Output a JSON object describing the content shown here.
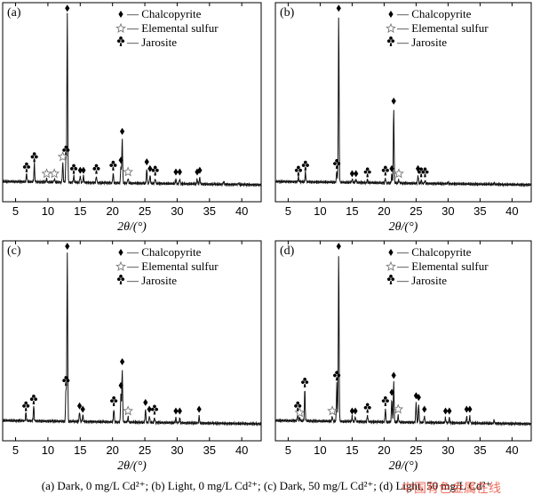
{
  "caption": "(a) Dark, 0 mg/L Cd²⁺; (b) Light, 0 mg/L Cd²⁺; (c) Dark, 50 mg/L Cd²⁺; (d) Light, 50 mg/L Cd²⁺",
  "watermark": "中国有色金属在线",
  "chart_data": [
    {
      "type": "line",
      "label": "(a)",
      "xlabel": "2θ/(°)",
      "xlim": [
        3,
        43
      ],
      "xticks": [
        5,
        10,
        15,
        20,
        25,
        30,
        35,
        40
      ],
      "legend": [
        "— Chalcopyrite",
        "— Elemental sulfur",
        "— Jarosite"
      ],
      "legend_placement": "top-right",
      "peaks": [
        {
          "x": 13.0,
          "h": 1.0,
          "marker": "chalcopyrite"
        },
        {
          "x": 21.5,
          "h": 0.27,
          "marker": "chalcopyrite"
        },
        {
          "x": 25.3,
          "h": 0.09,
          "marker": "chalcopyrite"
        },
        {
          "x": 12.8,
          "h": 0.15,
          "marker": "jarosite"
        },
        {
          "x": 12.3,
          "h": 0.12,
          "marker": "sulfur"
        },
        {
          "x": 6.7,
          "h": 0.05,
          "marker": "jarosite"
        },
        {
          "x": 7.9,
          "h": 0.11,
          "marker": "jarosite"
        },
        {
          "x": 9.8,
          "h": 0.02,
          "marker": "sulfur"
        },
        {
          "x": 11.0,
          "h": 0.02,
          "marker": "sulfur"
        },
        {
          "x": 14.0,
          "h": 0.04,
          "marker": "jarosite"
        },
        {
          "x": 15.0,
          "h": 0.04,
          "marker": "chalcopyrite"
        },
        {
          "x": 15.5,
          "h": 0.04,
          "marker": "chalcopyrite"
        },
        {
          "x": 17.5,
          "h": 0.04,
          "marker": "jarosite"
        },
        {
          "x": 20.1,
          "h": 0.06,
          "marker": "jarosite"
        },
        {
          "x": 21.3,
          "h": 0.1,
          "marker": "chalcopyrite"
        },
        {
          "x": 22.4,
          "h": 0.03,
          "marker": "sulfur"
        },
        {
          "x": 25.8,
          "h": 0.05,
          "marker": "chalcopyrite"
        },
        {
          "x": 26.6,
          "h": 0.03,
          "marker": "jarosite"
        },
        {
          "x": 29.8,
          "h": 0.03,
          "marker": "chalcopyrite"
        },
        {
          "x": 30.4,
          "h": 0.03,
          "marker": "chalcopyrite"
        },
        {
          "x": 33.1,
          "h": 0.03,
          "marker": "chalcopyrite"
        },
        {
          "x": 33.5,
          "h": 0.04,
          "marker": "chalcopyrite"
        },
        {
          "x": 37.2,
          "h": 0.02,
          "marker": "none"
        },
        {
          "x": 39.5,
          "h": 0.01,
          "marker": "none"
        }
      ]
    },
    {
      "type": "line",
      "label": "(b)",
      "xlabel": "2θ/(°)",
      "xlim": [
        3,
        43
      ],
      "xticks": [
        5,
        10,
        15,
        20,
        25,
        30,
        35,
        40
      ],
      "legend": [
        "— Chalcopyrite",
        "— Elemental sulfur",
        "— Jarosite"
      ],
      "legend_placement": "top-right",
      "peaks": [
        {
          "x": 12.9,
          "h": 1.0,
          "marker": "chalcopyrite"
        },
        {
          "x": 21.5,
          "h": 0.45,
          "marker": "chalcopyrite"
        },
        {
          "x": 12.6,
          "h": 0.07,
          "marker": "jarosite"
        },
        {
          "x": 6.6,
          "h": 0.03,
          "marker": "jarosite"
        },
        {
          "x": 7.7,
          "h": 0.06,
          "marker": "jarosite"
        },
        {
          "x": 15.0,
          "h": 0.02,
          "marker": "chalcopyrite"
        },
        {
          "x": 15.6,
          "h": 0.02,
          "marker": "chalcopyrite"
        },
        {
          "x": 17.4,
          "h": 0.02,
          "marker": "jarosite"
        },
        {
          "x": 20.2,
          "h": 0.03,
          "marker": "jarosite"
        },
        {
          "x": 21.2,
          "h": 0.05,
          "marker": "chalcopyrite"
        },
        {
          "x": 22.3,
          "h": 0.02,
          "marker": "sulfur"
        },
        {
          "x": 25.3,
          "h": 0.05,
          "marker": "chalcopyrite"
        },
        {
          "x": 25.8,
          "h": 0.02,
          "marker": "jarosite"
        },
        {
          "x": 26.4,
          "h": 0.02,
          "marker": "jarosite"
        },
        {
          "x": 30.0,
          "h": 0.01,
          "marker": "none"
        },
        {
          "x": 37.2,
          "h": 0.01,
          "marker": "none"
        }
      ]
    },
    {
      "type": "line",
      "label": "(c)",
      "xlabel": "2θ/(°)",
      "xlim": [
        3,
        43
      ],
      "xticks": [
        5,
        10,
        15,
        20,
        25,
        30,
        35,
        40
      ],
      "legend": [
        "— Chalcopyrite",
        "— Elemental sulfur",
        "— Jarosite"
      ],
      "legend_placement": "top-right",
      "peaks": [
        {
          "x": 13.0,
          "h": 1.0,
          "marker": "chalcopyrite"
        },
        {
          "x": 21.5,
          "h": 0.32,
          "marker": "chalcopyrite"
        },
        {
          "x": 12.8,
          "h": 0.2,
          "marker": "jarosite"
        },
        {
          "x": 6.6,
          "h": 0.05,
          "marker": "jarosite"
        },
        {
          "x": 7.8,
          "h": 0.09,
          "marker": "jarosite"
        },
        {
          "x": 14.9,
          "h": 0.06,
          "marker": "chalcopyrite"
        },
        {
          "x": 15.4,
          "h": 0.04,
          "marker": "chalcopyrite"
        },
        {
          "x": 20.2,
          "h": 0.08,
          "marker": "jarosite"
        },
        {
          "x": 21.3,
          "h": 0.18,
          "marker": "chalcopyrite"
        },
        {
          "x": 22.4,
          "h": 0.03,
          "marker": "sulfur"
        },
        {
          "x": 25.1,
          "h": 0.08,
          "marker": "chalcopyrite"
        },
        {
          "x": 25.7,
          "h": 0.04,
          "marker": "chalcopyrite"
        },
        {
          "x": 26.5,
          "h": 0.03,
          "marker": "jarosite"
        },
        {
          "x": 29.8,
          "h": 0.03,
          "marker": "chalcopyrite"
        },
        {
          "x": 30.4,
          "h": 0.03,
          "marker": "chalcopyrite"
        },
        {
          "x": 33.4,
          "h": 0.04,
          "marker": "chalcopyrite"
        }
      ]
    },
    {
      "type": "line",
      "label": "(d)",
      "xlabel": "2θ/(°)",
      "xlim": [
        3,
        43
      ],
      "xticks": [
        5,
        10,
        15,
        20,
        25,
        30,
        35,
        40
      ],
      "legend": [
        "— Chalcopyrite",
        "— Elemental sulfur",
        "— Jarosite"
      ],
      "legend_placement": "top-right",
      "peaks": [
        {
          "x": 12.9,
          "h": 1.0,
          "marker": "chalcopyrite"
        },
        {
          "x": 21.5,
          "h": 0.24,
          "marker": "chalcopyrite"
        },
        {
          "x": 12.6,
          "h": 0.23,
          "marker": "jarosite"
        },
        {
          "x": 6.5,
          "h": 0.05,
          "marker": "jarosite"
        },
        {
          "x": 7.6,
          "h": 0.19,
          "marker": "jarosite"
        },
        {
          "x": 6.8,
          "h": 0.02,
          "marker": "sulfur"
        },
        {
          "x": 11.9,
          "h": 0.03,
          "marker": "sulfur"
        },
        {
          "x": 15.0,
          "h": 0.03,
          "marker": "chalcopyrite"
        },
        {
          "x": 15.5,
          "h": 0.03,
          "marker": "chalcopyrite"
        },
        {
          "x": 17.4,
          "h": 0.04,
          "marker": "jarosite"
        },
        {
          "x": 20.2,
          "h": 0.08,
          "marker": "jarosite"
        },
        {
          "x": 21.2,
          "h": 0.14,
          "marker": "chalcopyrite"
        },
        {
          "x": 22.2,
          "h": 0.04,
          "marker": "sulfur"
        },
        {
          "x": 25.0,
          "h": 0.12,
          "marker": "chalcopyrite"
        },
        {
          "x": 25.4,
          "h": 0.11,
          "marker": "chalcopyrite"
        },
        {
          "x": 26.3,
          "h": 0.04,
          "marker": "chalcopyrite"
        },
        {
          "x": 29.6,
          "h": 0.03,
          "marker": "chalcopyrite"
        },
        {
          "x": 30.2,
          "h": 0.03,
          "marker": "chalcopyrite"
        },
        {
          "x": 32.9,
          "h": 0.04,
          "marker": "chalcopyrite"
        },
        {
          "x": 33.4,
          "h": 0.04,
          "marker": "chalcopyrite"
        },
        {
          "x": 37.2,
          "h": 0.02,
          "marker": "none"
        }
      ]
    }
  ]
}
